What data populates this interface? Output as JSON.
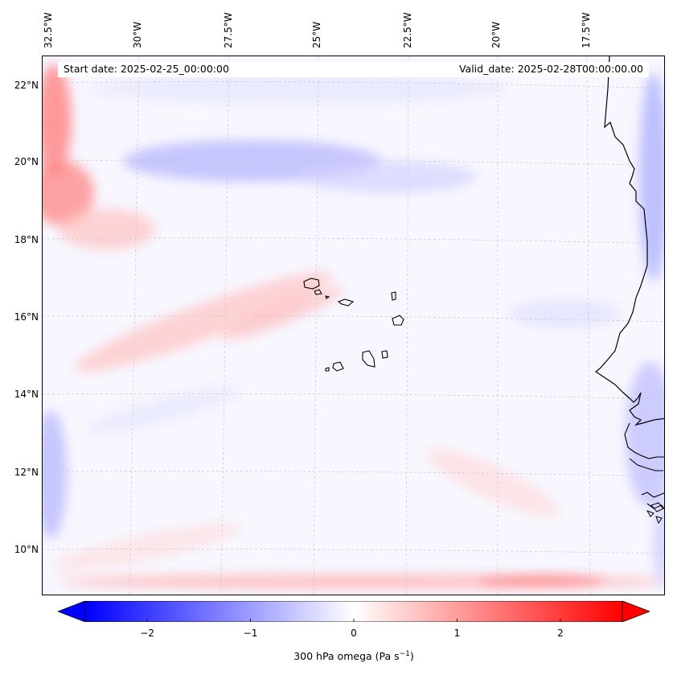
{
  "header": {
    "start_date": "Start date: 2025-02-25_00:00:00",
    "valid_date": "Valid_date: 2025-02-28T00:00:00.00"
  },
  "map": {
    "lon_labels": [
      "32.5°W",
      "30°W",
      "27.5°W",
      "25°W",
      "22.5°W",
      "20°W",
      "17.5°W"
    ],
    "lat_labels": [
      "22°N",
      "20°N",
      "18°N",
      "16°N",
      "14°N",
      "12°N",
      "10°N"
    ],
    "variable": "300 hPa omega"
  },
  "colorbar": {
    "min": -2.6,
    "max": 2.6,
    "ticks": [
      "−2",
      "−1",
      "0",
      "1",
      "2"
    ],
    "tick_values": [
      -2,
      -1,
      0,
      1,
      2
    ],
    "label": "300 hPa omega (Pa s",
    "label_exp": "−1",
    "label_close": ")",
    "colors": {
      "negative": "#0000ff",
      "zero": "#ffffff",
      "positive": "#ff0000"
    }
  }
}
